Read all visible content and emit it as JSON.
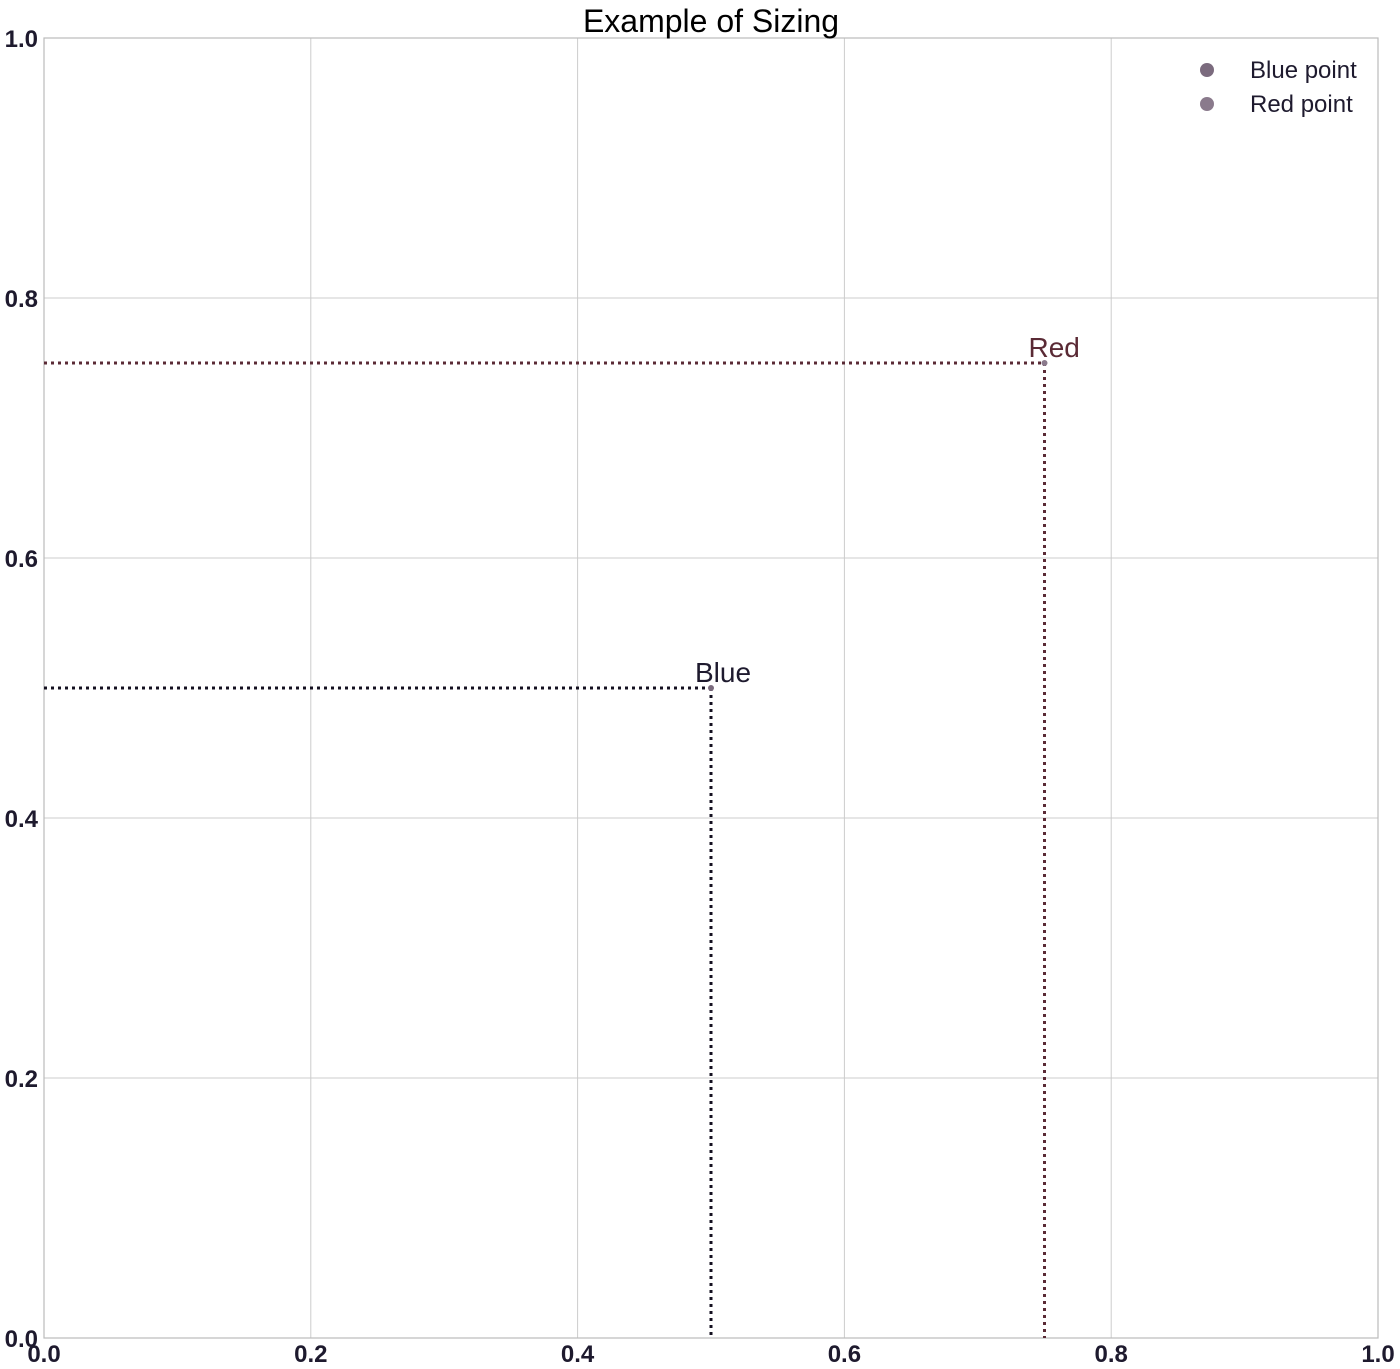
{
  "chart_data": {
    "type": "scatter",
    "title": "Example of Sizing",
    "xlabel": "",
    "ylabel": "",
    "xlim": [
      0.0,
      1.0
    ],
    "ylim": [
      0.0,
      1.0
    ],
    "x_ticks": [
      0.0,
      0.2,
      0.4,
      0.6,
      0.8,
      1.0
    ],
    "y_ticks": [
      0.0,
      0.2,
      0.4,
      0.6,
      0.8,
      1.0
    ],
    "x_tick_labels": [
      "0.0",
      "0.2",
      "0.4",
      "0.6",
      "0.8",
      "1.0"
    ],
    "y_tick_labels": [
      "0.0",
      "0.2",
      "0.4",
      "0.6",
      "0.8",
      "1.0"
    ],
    "grid": true,
    "legend_position": "top-right",
    "series": [
      {
        "name": "Blue point",
        "x": [
          0.5
        ],
        "y": [
          0.5
        ],
        "marker_color": "#7b6b7e",
        "annotation": "Blue",
        "annotation_color": "#1e1a2e",
        "guide_line_color": "#141020"
      },
      {
        "name": "Red point",
        "x": [
          0.75
        ],
        "y": [
          0.75
        ],
        "marker_color": "#8a7a8c",
        "annotation": "Red",
        "annotation_color": "#5a2a35",
        "guide_line_color": "#5a2a35"
      }
    ]
  },
  "colors": {
    "grid": "#cccccc",
    "axes": "#bbbbbb",
    "text": "#1e1a2e"
  }
}
